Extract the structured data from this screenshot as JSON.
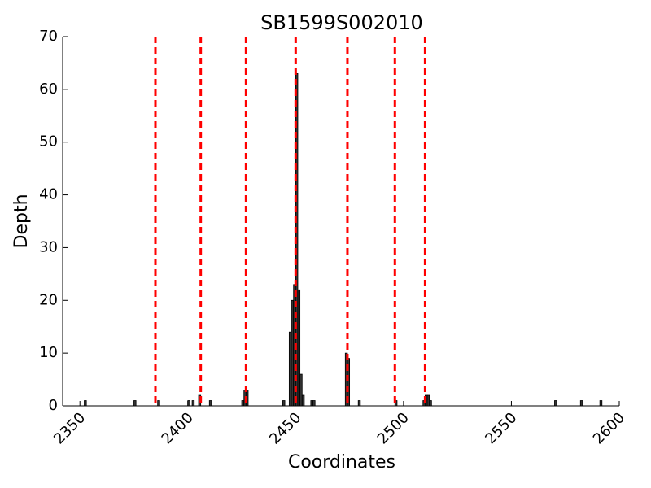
{
  "chart_data": {
    "type": "bar",
    "title": "SB1599S002010",
    "x_label": "Coordinates",
    "y_label": "Depth",
    "x": [
      2352,
      2375,
      2386,
      2400,
      2402,
      2405,
      2410,
      2425,
      2426,
      2427,
      2444,
      2447,
      2448,
      2449,
      2450,
      2451,
      2452,
      2453,
      2457,
      2458,
      2473,
      2474,
      2479,
      2496,
      2509,
      2510,
      2511,
      2512,
      2570,
      2582,
      2591
    ],
    "values": [
      1,
      1,
      1,
      1,
      1,
      2,
      1,
      1,
      3,
      3,
      1,
      14,
      20,
      23,
      63,
      22,
      6,
      2,
      1,
      1,
      10,
      9,
      1,
      1,
      1,
      2,
      2,
      1,
      1,
      1,
      1
    ],
    "color": "#333333",
    "markers": [
      2385,
      2406,
      2427,
      2450,
      2474,
      2496,
      2510
    ],
    "marker_color": "#ff0000",
    "xlim": [
      2342,
      2600
    ],
    "xticks": [
      2350,
      2400,
      2450,
      2500,
      2550,
      2600
    ],
    "ylim": [
      0,
      70
    ],
    "yticks": [
      0,
      10,
      20,
      30,
      40,
      50,
      60,
      70
    ],
    "grid": false
  }
}
